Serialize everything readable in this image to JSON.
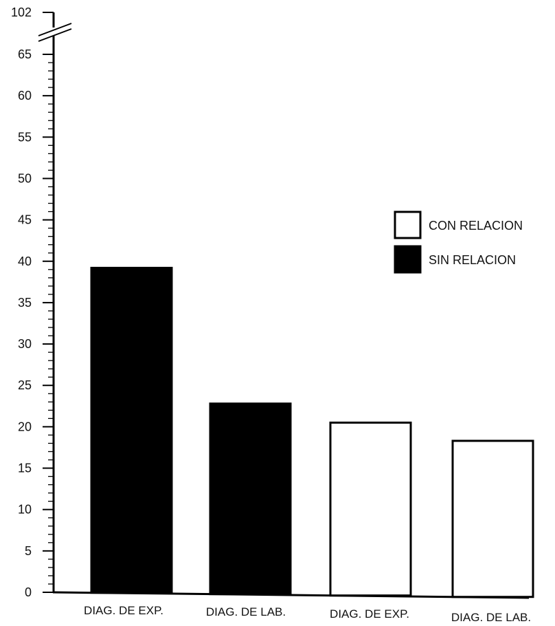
{
  "chart_data": {
    "type": "bar",
    "title": "",
    "xlabel": "",
    "ylabel": "",
    "categories": [
      "DIAG. DE EXP.",
      "DIAG. DE LAB.",
      "DIAG. DE EXP.",
      "DIAG. DE LAB."
    ],
    "bars": [
      {
        "category": "DIAG. DE EXP.",
        "series": "SIN RELACION",
        "value": 39.2
      },
      {
        "category": "DIAG. DE LAB.",
        "series": "SIN RELACION",
        "value": 22.8
      },
      {
        "category": "DIAG. DE EXP.",
        "series": "CON RELACION",
        "value": 20.5
      },
      {
        "category": "DIAG. DE LAB.",
        "series": "CON RELACION",
        "value": 18.3
      }
    ],
    "series": [
      {
        "name": "CON RELACION",
        "fill": "#ffffff"
      },
      {
        "name": "SIN RELACION",
        "fill": "#000000"
      }
    ],
    "ylim": [
      0,
      65
    ],
    "yticks": [
      0,
      5,
      10,
      15,
      20,
      25,
      30,
      35,
      40,
      45,
      50,
      55,
      60,
      65
    ],
    "ybreak_top_value": 102,
    "ybreak_top_label": "102",
    "axis_break": true,
    "legend": "right",
    "grid": false
  }
}
